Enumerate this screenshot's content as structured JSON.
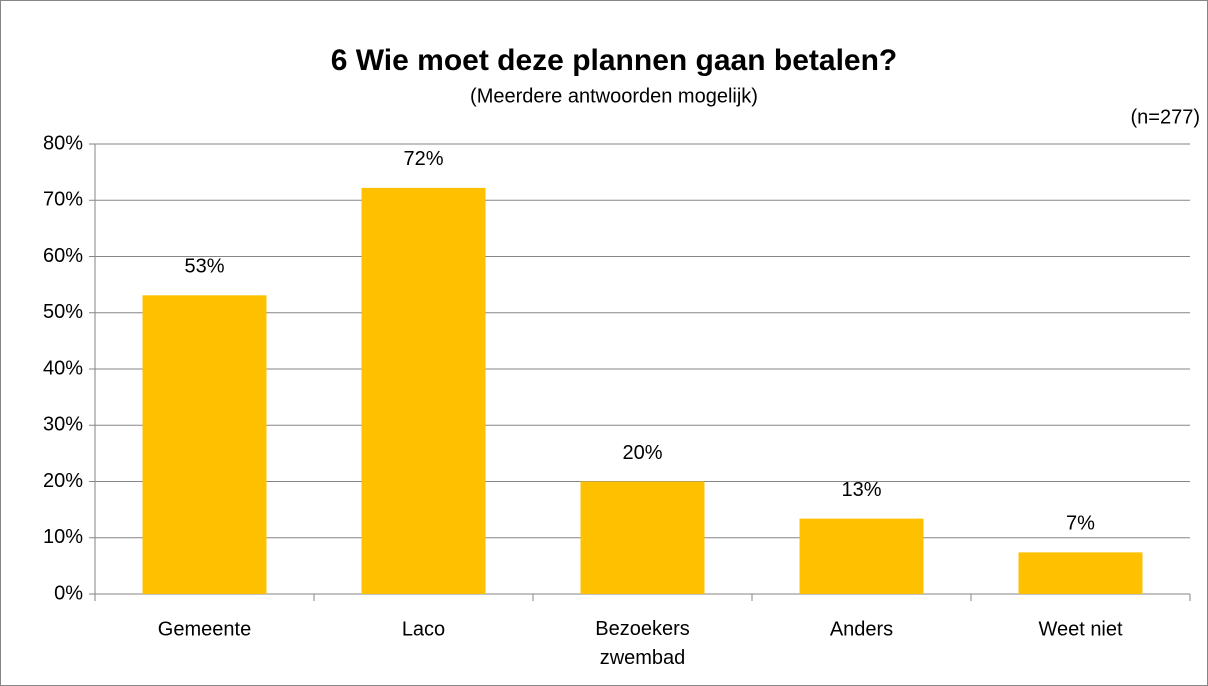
{
  "chart_data": {
    "type": "bar",
    "title": "6 Wie moet deze plannen gaan betalen?",
    "subtitle": "(Meerdere antwoorden mogelijk)",
    "annotation": "(n=277)",
    "categories": [
      "Gemeente",
      "Laco",
      "Bezoekers zwembad",
      "Anders",
      "Weet niet"
    ],
    "values": [
      53.1,
      72.2,
      20,
      13.4,
      7.4
    ],
    "value_labels": [
      "53%",
      "72%",
      "20%",
      "13%",
      "7%"
    ],
    "color": "#ffc000",
    "ylim": [
      0,
      80
    ],
    "yticks": [
      {
        "value": 0,
        "label": "0%"
      },
      {
        "value": 10,
        "label": "10%"
      },
      {
        "value": 20,
        "label": "20%"
      },
      {
        "value": 30,
        "label": "30%"
      },
      {
        "value": 40,
        "label": "40%"
      },
      {
        "value": 50,
        "label": "50%"
      },
      {
        "value": 60,
        "label": "60%"
      },
      {
        "value": 70,
        "label": "70%"
      },
      {
        "value": 80,
        "label": "80%"
      }
    ],
    "grid": true
  }
}
